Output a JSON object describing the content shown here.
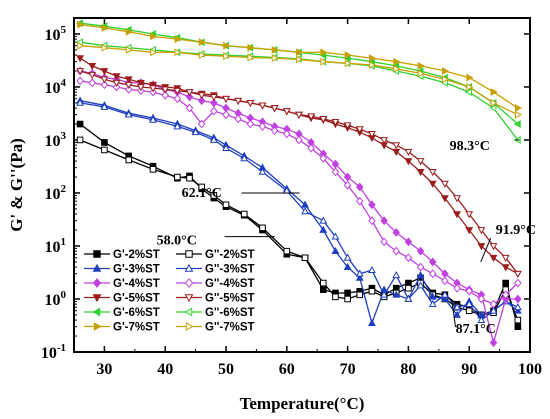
{
  "chart_data": {
    "type": "line",
    "xlabel": "Temperature(°C)",
    "ylabel": "G' & G''(Pa)",
    "xlim": [
      25,
      100
    ],
    "ylim": [
      0.1,
      200000
    ],
    "yscale": "log",
    "x_ticks": [
      30,
      40,
      50,
      60,
      70,
      80,
      90,
      100
    ],
    "y_ticks": [
      {
        "value": 0.1,
        "base": "10",
        "exp": "-1"
      },
      {
        "value": 1,
        "base": "10",
        "exp": "0"
      },
      {
        "value": 10,
        "base": "10",
        "exp": "1"
      },
      {
        "value": 100,
        "base": "10",
        "exp": "2"
      },
      {
        "value": 1000,
        "base": "10",
        "exp": "3"
      },
      {
        "value": 10000,
        "base": "10",
        "exp": "4"
      },
      {
        "value": 100000,
        "base": "10",
        "exp": "5"
      }
    ],
    "legend_position": "bottom-left",
    "series": [
      {
        "name": "G'-2%ST",
        "color": "#000000",
        "marker": "square",
        "filled": true,
        "x": [
          26,
          30,
          34,
          38,
          42,
          44,
          46,
          48,
          50,
          53,
          56,
          60,
          63,
          66,
          68,
          70,
          72,
          74,
          76,
          78,
          80,
          82,
          84,
          86,
          88,
          90,
          92,
          94,
          96,
          98
        ],
        "y": [
          2000,
          900,
          500,
          320,
          190,
          210,
          120,
          80,
          55,
          38,
          20,
          7,
          6,
          1.5,
          1.3,
          1.3,
          1.4,
          1.6,
          1.2,
          1.6,
          2.0,
          2.5,
          1.3,
          1.2,
          0.8,
          0.7,
          0.5,
          0.6,
          2.0,
          0.3
        ]
      },
      {
        "name": "G''-2%ST",
        "color": "#000000",
        "marker": "square",
        "filled": false,
        "x": [
          26,
          30,
          34,
          38,
          42,
          44,
          46,
          48,
          50,
          53,
          56,
          60,
          63,
          66,
          68,
          70,
          72,
          74,
          76,
          78,
          80,
          82,
          84,
          86,
          88,
          90,
          92,
          94,
          96,
          98
        ],
        "y": [
          1000,
          650,
          420,
          280,
          200,
          190,
          130,
          90,
          60,
          40,
          22,
          8,
          6,
          2.0,
          1.1,
          1.0,
          1.2,
          1.4,
          1.1,
          1.3,
          1.6,
          2.0,
          1.2,
          1.0,
          0.7,
          0.6,
          0.5,
          0.55,
          1.5,
          0.4
        ]
      },
      {
        "name": "G'-3%ST",
        "color": "#1f3fbf",
        "marker": "triangle-up",
        "filled": true,
        "x": [
          26,
          30,
          34,
          38,
          42,
          45,
          48,
          50,
          53,
          56,
          60,
          63,
          66,
          68,
          70,
          72,
          74,
          76,
          78,
          80,
          82,
          84,
          86,
          88,
          90,
          92,
          94,
          96,
          98
        ],
        "y": [
          5500,
          4500,
          3200,
          2600,
          2000,
          1500,
          1100,
          800,
          500,
          300,
          120,
          60,
          20,
          8,
          4,
          2.5,
          0.35,
          1.5,
          1.2,
          1.0,
          2.8,
          1.1,
          1.0,
          0.5,
          0.9,
          0.5,
          0.6,
          0.9,
          0.6
        ]
      },
      {
        "name": "G''-3%ST",
        "color": "#1f3fbf",
        "marker": "triangle-up",
        "filled": false,
        "x": [
          26,
          30,
          34,
          38,
          42,
          45,
          48,
          50,
          53,
          56,
          60,
          63,
          66,
          68,
          70,
          72,
          74,
          76,
          78,
          80,
          82,
          84,
          86,
          88,
          90,
          92,
          94,
          96,
          98
        ],
        "y": [
          5000,
          4200,
          3000,
          2400,
          1800,
          1400,
          1000,
          700,
          450,
          250,
          110,
          45,
          30,
          15,
          6,
          3,
          3.5,
          1.2,
          2.8,
          1.0,
          1.8,
          0.8,
          1.2,
          0.7,
          0.8,
          0.4,
          0.6,
          0.9,
          0.7
        ]
      },
      {
        "name": "G'-4%ST",
        "color": "#c040e0",
        "marker": "diamond",
        "filled": true,
        "x": [
          26,
          28,
          30,
          32,
          34,
          36,
          38,
          40,
          42,
          44,
          46,
          48,
          50,
          52,
          54,
          56,
          58,
          60,
          62,
          64,
          66,
          68,
          70,
          72,
          74,
          76,
          78,
          80,
          82,
          84,
          86,
          88,
          90,
          92,
          94,
          96,
          98
        ],
        "y": [
          20000,
          18000,
          15000,
          14000,
          12000,
          12000,
          11000,
          9000,
          8000,
          6500,
          5500,
          5000,
          4000,
          3200,
          2600,
          2200,
          1800,
          1600,
          1300,
          900,
          550,
          350,
          200,
          130,
          60,
          30,
          18,
          12,
          8,
          5,
          3,
          2,
          1.5,
          1.2,
          0.15,
          1.0,
          1.0
        ]
      },
      {
        "name": "G''-4%ST",
        "color": "#c040e0",
        "marker": "diamond",
        "filled": false,
        "x": [
          26,
          28,
          30,
          32,
          34,
          36,
          38,
          40,
          42,
          44,
          46,
          48,
          50,
          52,
          54,
          56,
          58,
          60,
          62,
          64,
          66,
          68,
          70,
          72,
          74,
          76,
          78,
          80,
          82,
          84,
          86,
          88,
          90,
          92,
          94,
          96,
          98
        ],
        "y": [
          13000,
          12000,
          11000,
          10000,
          9000,
          8500,
          8000,
          7000,
          6000,
          4000,
          2000,
          3500,
          3000,
          2500,
          2000,
          1800,
          1500,
          1300,
          1000,
          700,
          450,
          250,
          140,
          70,
          30,
          12,
          8,
          6,
          4,
          3,
          2.2,
          1.6,
          1.4,
          1.0,
          0.8,
          1.2,
          2.0
        ]
      },
      {
        "name": "G'-5%ST",
        "color": "#9b1c1c",
        "marker": "triangle-down",
        "filled": true,
        "x": [
          26,
          28,
          30,
          32,
          34,
          36,
          38,
          40,
          42,
          44,
          46,
          48,
          50,
          52,
          54,
          56,
          58,
          60,
          62,
          64,
          66,
          68,
          70,
          72,
          74,
          76,
          78,
          80,
          82,
          84,
          86,
          88,
          90,
          92,
          94,
          96,
          98
        ],
        "y": [
          35000,
          25000,
          20000,
          16000,
          14000,
          12000,
          11000,
          10000,
          9500,
          8000,
          7500,
          7000,
          6000,
          5500,
          5000,
          4500,
          4000,
          3500,
          3000,
          2600,
          2400,
          2000,
          1700,
          1400,
          1100,
          800,
          600,
          400,
          250,
          150,
          80,
          40,
          20,
          10,
          6,
          4,
          3
        ]
      },
      {
        "name": "G''-5%ST",
        "color": "#9b1c1c",
        "marker": "triangle-down",
        "filled": false,
        "x": [
          26,
          28,
          30,
          32,
          34,
          36,
          38,
          40,
          42,
          44,
          46,
          48,
          50,
          52,
          54,
          56,
          58,
          60,
          62,
          64,
          66,
          68,
          70,
          72,
          74,
          76,
          78,
          80,
          82,
          84,
          86,
          88,
          90,
          92,
          94,
          96,
          98
        ],
        "y": [
          20000,
          17000,
          14000,
          12000,
          11000,
          10000,
          9500,
          9000,
          8500,
          8000,
          7000,
          6500,
          6000,
          5500,
          5000,
          4500,
          4000,
          3500,
          3000,
          2800,
          2500,
          2200,
          1900,
          1600,
          1300,
          1000,
          800,
          600,
          400,
          250,
          150,
          80,
          40,
          20,
          10,
          6,
          3
        ]
      },
      {
        "name": "G'-6%ST",
        "color": "#2fd12f",
        "marker": "triangle-left",
        "filled": true,
        "x": [
          26,
          30,
          34,
          38,
          42,
          46,
          50,
          54,
          58,
          62,
          66,
          70,
          74,
          78,
          82,
          86,
          90,
          94,
          98
        ],
        "y": [
          160000,
          140000,
          120000,
          100000,
          85000,
          70000,
          60000,
          55000,
          50000,
          45000,
          40000,
          35000,
          30000,
          25000,
          20000,
          15000,
          10000,
          5000,
          2000
        ]
      },
      {
        "name": "G''-6%ST",
        "color": "#2fd12f",
        "marker": "triangle-left",
        "filled": false,
        "x": [
          26,
          30,
          34,
          38,
          42,
          46,
          50,
          54,
          58,
          62,
          66,
          70,
          74,
          78,
          82,
          86,
          90,
          94,
          98
        ],
        "y": [
          70000,
          60000,
          55000,
          50000,
          45000,
          42000,
          40000,
          38000,
          36000,
          34000,
          30000,
          28000,
          25000,
          20000,
          16000,
          12000,
          8000,
          4000,
          1000
        ]
      },
      {
        "name": "G'-7%ST",
        "color": "#c8a000",
        "marker": "triangle-right",
        "filled": true,
        "x": [
          26,
          30,
          34,
          38,
          42,
          46,
          50,
          54,
          58,
          62,
          66,
          70,
          74,
          78,
          82,
          86,
          90,
          94,
          98
        ],
        "y": [
          150000,
          130000,
          110000,
          90000,
          80000,
          70000,
          60000,
          55000,
          50000,
          45000,
          45000,
          40000,
          35000,
          30000,
          25000,
          20000,
          15000,
          8000,
          4000
        ]
      },
      {
        "name": "G''-7%ST",
        "color": "#c8a000",
        "marker": "triangle-right",
        "filled": false,
        "x": [
          26,
          30,
          34,
          38,
          42,
          46,
          50,
          54,
          58,
          62,
          66,
          70,
          74,
          78,
          82,
          86,
          90,
          94,
          98
        ],
        "y": [
          60000,
          55000,
          50000,
          45000,
          45000,
          40000,
          38000,
          36000,
          35000,
          33000,
          30000,
          28000,
          26000,
          22000,
          18000,
          14000,
          10000,
          5000,
          3000
        ]
      }
    ],
    "annotations": [
      {
        "text": "98.3°C",
        "x": 98.3,
        "y": 1000
      },
      {
        "text": "62.1°C",
        "x": 62.1,
        "y": 100
      },
      {
        "text": "58.0°C",
        "x": 58.0,
        "y": 15
      },
      {
        "text": "91.9°C",
        "x": 91.9,
        "y": 5
      },
      {
        "text": "87.1°C",
        "x": 87.1,
        "y": 1
      }
    ]
  }
}
